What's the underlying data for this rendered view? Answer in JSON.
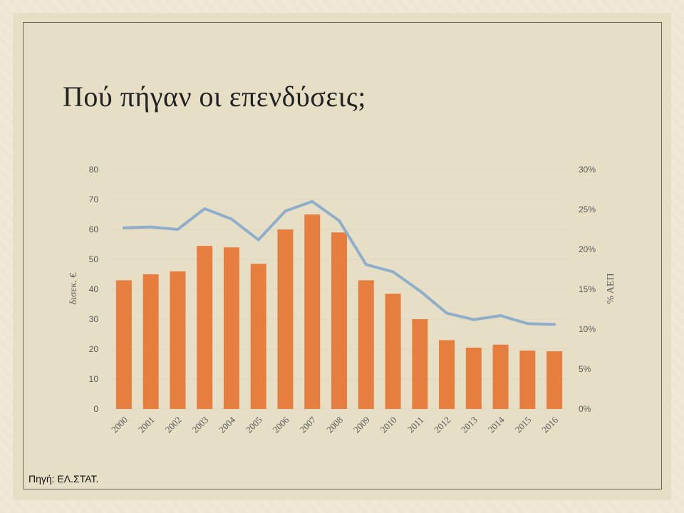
{
  "title": "Πού πήγαν οι επενδύσεις;",
  "source": "Πηγή: ΕΛ.ΣΤΑΤ.",
  "colors": {
    "bar": "#e67e3f",
    "line": "#8eaecb",
    "grid": "#dcd5bf",
    "background": "#e7dec6"
  },
  "chart_data": {
    "type": "bar",
    "categories": [
      "2000",
      "2001",
      "2002",
      "2003",
      "2004",
      "2005",
      "2006",
      "2007",
      "2008",
      "2009",
      "2010",
      "2011",
      "2012",
      "2013",
      "2014",
      "2015",
      "2016"
    ],
    "series": [
      {
        "type": "bar",
        "axis": "left",
        "values": [
          43,
          45,
          46,
          54.5,
          54,
          48.5,
          60,
          65,
          59,
          43,
          38.5,
          30,
          23,
          20.5,
          21.5,
          19.5,
          19.3
        ]
      },
      {
        "type": "line",
        "axis": "right",
        "values": [
          22.7,
          22.8,
          22.5,
          25.1,
          23.8,
          21.2,
          24.8,
          26.0,
          23.6,
          18.1,
          17.2,
          14.8,
          12.0,
          11.2,
          11.7,
          10.7,
          10.6
        ]
      }
    ],
    "ylabel": "δισεκ. €",
    "ylabel_right": "% ΑΕΠ",
    "ylim": [
      0,
      80
    ],
    "ylim_right": [
      0,
      30
    ],
    "yticks": [
      "0",
      "10",
      "20",
      "30",
      "40",
      "50",
      "60",
      "70",
      "80"
    ],
    "yticks_right": [
      "0%",
      "5%",
      "10%",
      "15%",
      "20%",
      "25%",
      "30%"
    ],
    "grid": true
  }
}
